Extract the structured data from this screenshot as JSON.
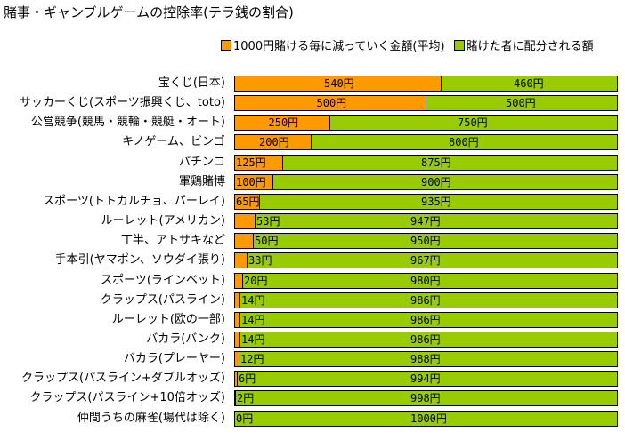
{
  "title": "賭事・ギャンブルゲームの控除率(テラ銭の割合)",
  "legend": [
    {
      "label": "1000円賭ける毎に減っていく金額(平均)",
      "color": "#ff9900"
    },
    {
      "label": "賭けた者に配分される額",
      "color": "#99cc00"
    }
  ],
  "chart_data": {
    "type": "bar",
    "orientation": "horizontal",
    "stacked": true,
    "title": "賭事・ギャンブルゲームの控除率(テラ銭の割合)",
    "unit": "円",
    "total": 1000,
    "xlim": [
      0,
      1000
    ],
    "legend_position": "top-right",
    "categories": [
      "宝くじ(日本)",
      "サッカーくじ(スポーツ振興くじ、toto)",
      "公営競争(競馬・競輪・競艇・オート)",
      "キノゲーム、ビンゴ",
      "パチンコ",
      "軍鶏賭博",
      "スポーツ(トトカルチョ、パーレイ)",
      "ルーレット(アメリカン)",
      "丁半、アトサキなど",
      "手本引(ヤマポン、ソウダイ張り)",
      "スポーツ(ラインベット)",
      "クラップス(パスライン)",
      "ルーレット(欧の一部)",
      "バカラ(バンク)",
      "バカラ(プレーヤー)",
      "クラップス(パスライン+ダブルオッズ)",
      "クラップス(パスライン+10倍オッズ)",
      "仲間うちの麻雀(場代は除く)"
    ],
    "series": [
      {
        "name": "1000円賭ける毎に減っていく金額(平均)",
        "color": "#ff9900",
        "values": [
          540,
          500,
          250,
          200,
          125,
          100,
          65,
          53,
          50,
          33,
          20,
          14,
          14,
          14,
          12,
          6,
          2,
          0
        ]
      },
      {
        "name": "賭けた者に配分される額",
        "color": "#99cc00",
        "values": [
          460,
          500,
          750,
          800,
          875,
          900,
          935,
          947,
          950,
          967,
          980,
          986,
          986,
          986,
          988,
          994,
          998,
          1000
        ]
      }
    ],
    "value_labels": {
      "lost": [
        "540円",
        "500円",
        "250円",
        "200円",
        "125円",
        "100円",
        "65円",
        "53円",
        "50円",
        "33円",
        "20円",
        "14円",
        "14円",
        "14円",
        "12円",
        "6円",
        "2円",
        "0円"
      ],
      "returned": [
        "460円",
        "500円",
        "750円",
        "800円",
        "875円",
        "900円",
        "935円",
        "947円",
        "950円",
        "967円",
        "980円",
        "986円",
        "986円",
        "986円",
        "988円",
        "994円",
        "998円",
        "1000円"
      ]
    }
  }
}
